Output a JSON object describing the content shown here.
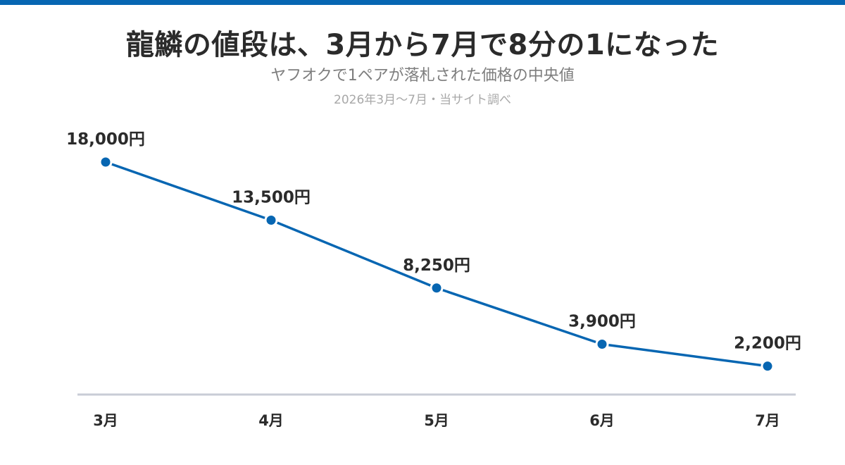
{
  "header": {
    "title": "龍鱗の値段は、3月から7月で8分の1になった",
    "subtitle": "ヤフオクで1ペアが落札された価格の中央値",
    "note": "2026年3月〜7月・当サイト調べ"
  },
  "colors": {
    "accent": "#0766b2",
    "axis": "#c9ccd6",
    "text": "#2b2b2b"
  },
  "chart_data": {
    "type": "line",
    "title": "龍鱗の値段は、3月から7月で8分の1になった",
    "subtitle": "ヤフオクで1ペアが落札された価格の中央値",
    "categories": [
      "3月",
      "4月",
      "5月",
      "6月",
      "7月"
    ],
    "series": [
      {
        "values": [
          18000,
          13500,
          8250,
          3900,
          2200
        ]
      }
    ],
    "data_labels": [
      "18,000円",
      "13,500円",
      "8,250円",
      "3,900円",
      "2,200円"
    ],
    "ylim": [
      0,
      23800
    ],
    "grid": false,
    "legend": "none",
    "xlabel": "",
    "ylabel": ""
  }
}
